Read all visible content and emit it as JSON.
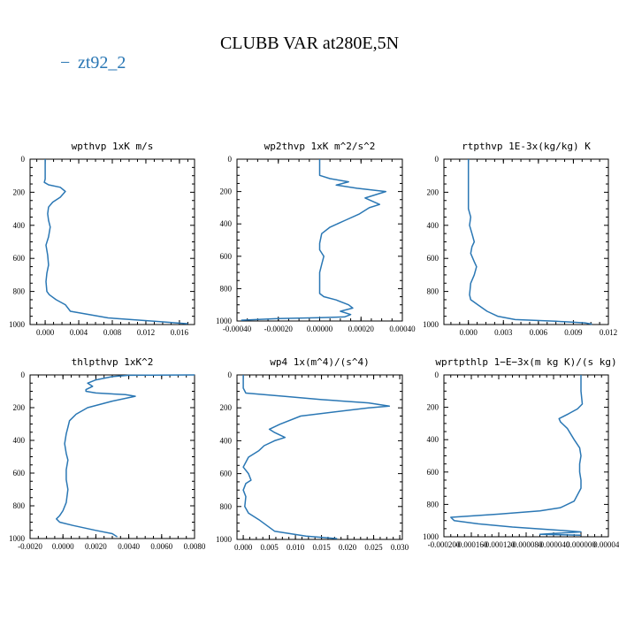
{
  "figure": {
    "title": "CLUBB VAR at280E,5N",
    "legend_marker": "−",
    "legend_label": "zt92_2",
    "line_color": "#2a77b4"
  },
  "chart_data": [
    {
      "type": "line",
      "title": "wpthvp   1xK m/s",
      "xticks": [
        "0.000",
        "0.004",
        "0.008",
        "0.012",
        "0.016"
      ],
      "xtick_values": [
        0,
        0.004,
        0.008,
        0.012,
        0.016
      ],
      "xlim": [
        -0.0018,
        0.0178
      ],
      "yticks": [
        "0",
        "200",
        "400",
        "600",
        "800",
        "1000"
      ],
      "ylim": [
        0,
        1000
      ],
      "y_inverted": true,
      "series": [
        {
          "x": [
            0,
            0,
            0,
            -0.0001,
            0.0004,
            0.0018,
            0.0024,
            0.0018,
            0.0009,
            0.0004,
            0.0003,
            0.0004,
            0.0006,
            0.0004,
            0.0001,
            0.0003,
            0.0004,
            0.0002,
            0.0001,
            0.0002,
            0.0005,
            0.0013,
            0.0024,
            0.003,
            0.0075,
            0.013,
            0.017
          ],
          "y": [
            0,
            50,
            120,
            140,
            155,
            170,
            195,
            230,
            260,
            290,
            330,
            370,
            410,
            470,
            520,
            580,
            640,
            690,
            740,
            800,
            820,
            850,
            880,
            920,
            960,
            980,
            995
          ]
        }
      ]
    },
    {
      "type": "line",
      "title": "wp2thvp   1xK m^2/s^2",
      "xticks": [
        "-0.00040",
        "-0.00020",
        "0.00000",
        "0.00020",
        "0.00040"
      ],
      "xtick_values": [
        -0.0004,
        -0.0002,
        0,
        0.0002,
        0.0004
      ],
      "xlim": [
        -0.0004,
        0.0004
      ],
      "yticks": [
        "0",
        "200",
        "400",
        "600",
        "800",
        "1000"
      ],
      "ylim": [
        0,
        1000
      ],
      "y_inverted": true,
      "series": [
        {
          "x": [
            0,
            0,
            5e-05,
            0.00014,
            8e-05,
            0.00018,
            0.00032,
            0.00022,
            0.00029,
            0.00024,
            0.00019,
            0.00012,
            5e-05,
            1e-05,
            0,
            0,
            1e-05,
            2e-05,
            1e-05,
            0,
            0,
            0,
            0,
            2e-05,
            8e-05,
            0.00014,
            0.00016,
            0.0001,
            0.00015,
            0.00012,
            0,
            -0.0002,
            -0.00038
          ],
          "y": [
            0,
            100,
            120,
            140,
            160,
            180,
            200,
            240,
            280,
            300,
            340,
            380,
            420,
            460,
            520,
            560,
            580,
            600,
            650,
            700,
            750,
            800,
            830,
            850,
            870,
            900,
            920,
            940,
            960,
            975,
            980,
            985,
            995
          ]
        }
      ]
    },
    {
      "type": "line",
      "title": "rtpthvp   1E-3x(kg/kg) K",
      "xticks": [
        "0.000",
        "0.003",
        "0.006",
        "0.009",
        "0.012"
      ],
      "xtick_values": [
        0,
        0.003,
        0.006,
        0.009,
        0.012
      ],
      "xlim": [
        -0.0021,
        0.012
      ],
      "yticks": [
        "0",
        "200",
        "400",
        "600",
        "800",
        "1000"
      ],
      "ylim": [
        0,
        1000
      ],
      "y_inverted": true,
      "series": [
        {
          "x": [
            0,
            0,
            0,
            0.0002,
            0.0001,
            0.0003,
            0.0005,
            0.0003,
            0.0002,
            0.0005,
            0.0007,
            0.0005,
            0.0002,
            0.0001,
            0.0002,
            0.0008,
            0.0016,
            0.0025,
            0.004,
            0.0075,
            0.01,
            0.0106
          ],
          "y": [
            0,
            100,
            300,
            350,
            400,
            450,
            500,
            530,
            570,
            620,
            650,
            700,
            750,
            820,
            850,
            880,
            920,
            950,
            970,
            980,
            990,
            998
          ]
        }
      ]
    },
    {
      "type": "line",
      "title": "thlpthvp   1xK^2",
      "xticks": [
        "-0.0020",
        "0.0000",
        "0.0020",
        "0.0040",
        "0.0060",
        "0.0080"
      ],
      "xtick_values": [
        -0.002,
        0,
        0.002,
        0.004,
        0.006,
        0.008
      ],
      "xlim": [
        -0.002,
        0.008
      ],
      "yticks": [
        "0",
        "200",
        "400",
        "600",
        "800",
        "1000"
      ],
      "ylim": [
        0,
        1000
      ],
      "y_inverted": true,
      "series": [
        {
          "x": [
            0.008,
            0.004,
            0.003,
            0.002,
            0.0015,
            0.0018,
            0.0014,
            0.0014,
            0.002,
            0.0028,
            0.0038,
            0.0044,
            0.003,
            0.0015,
            0.0008,
            0.0004,
            0.0003,
            0.0002,
            0.0001,
            0.0002,
            0.0003,
            0.0002,
            0.0002,
            0.0003,
            0.0002,
            0.0,
            -0.0002,
            -0.0004,
            -0.0002,
            0.0006,
            0.002,
            0.003,
            0.0033
          ],
          "y": [
            0,
            2,
            10,
            30,
            50,
            70,
            90,
            100,
            110,
            115,
            120,
            130,
            160,
            200,
            240,
            280,
            320,
            360,
            420,
            480,
            520,
            580,
            640,
            700,
            780,
            830,
            860,
            880,
            900,
            920,
            950,
            970,
            990
          ]
        }
      ]
    },
    {
      "type": "line",
      "title": "wp4   1x(m^4)/(s^4)",
      "xticks": [
        "0.000",
        "0.005",
        "0.010",
        "0.015",
        "0.020",
        "0.025",
        "0.030"
      ],
      "xtick_values": [
        0,
        0.005,
        0.01,
        0.015,
        0.02,
        0.025,
        0.03
      ],
      "xlim": [
        -0.0012,
        0.0305
      ],
      "yticks": [
        "0",
        "200",
        "400",
        "600",
        "800",
        "1000"
      ],
      "ylim": [
        0,
        1000
      ],
      "y_inverted": true,
      "series": [
        {
          "x": [
            0,
            0,
            0.0005,
            0.008,
            0.015,
            0.024,
            0.028,
            0.024,
            0.011,
            0.007,
            0.005,
            0.006,
            0.008,
            0.006,
            0.004,
            0.003,
            0.001,
            0.0,
            0.001,
            0.0015,
            0.0005,
            0.0,
            0.0005,
            0.0003,
            0.001,
            0.003,
            0.006,
            0.012,
            0.018
          ],
          "y": [
            0,
            80,
            110,
            130,
            150,
            170,
            190,
            200,
            250,
            300,
            330,
            350,
            380,
            400,
            430,
            460,
            500,
            560,
            600,
            640,
            660,
            700,
            740,
            800,
            840,
            880,
            950,
            980,
            995
          ]
        }
      ]
    },
    {
      "type": "line",
      "title": "wprtpthlp   1−E−3x(m kg K)/(s kg)",
      "xticks": [
        "-0.000200",
        "-0.000160",
        "-0.000120",
        "-0.000080",
        "-0.000040",
        "0.000000",
        "0.000040"
      ],
      "xtick_values": [
        -0.0002,
        -0.00016,
        -0.00012,
        -8e-05,
        -4e-05,
        0,
        4e-05
      ],
      "xlim": [
        -0.0002,
        4e-05
      ],
      "yticks": [
        "0",
        "200",
        "400",
        "600",
        "800",
        "1000"
      ],
      "ylim": [
        0,
        1000
      ],
      "y_inverted": true,
      "series": [
        {
          "x": [
            0,
            0,
            2e-06,
            -5e-06,
            -1.8e-05,
            -3.2e-05,
            -3e-05,
            -2e-05,
            -1e-05,
            -2e-06,
            0.0,
            -2e-06,
            -2e-06,
            0,
            0,
            -1e-05,
            -3e-05,
            -6e-05,
            -0.00012,
            -0.00019,
            -0.000185,
            -0.00015,
            -0.0001,
            -3e-05,
            0,
            -4e-05,
            -6e-05,
            0
          ],
          "y": [
            0,
            100,
            180,
            210,
            240,
            270,
            290,
            330,
            400,
            450,
            500,
            550,
            600,
            650,
            700,
            780,
            820,
            840,
            860,
            880,
            900,
            920,
            940,
            960,
            970,
            980,
            985,
            990
          ]
        }
      ]
    }
  ]
}
